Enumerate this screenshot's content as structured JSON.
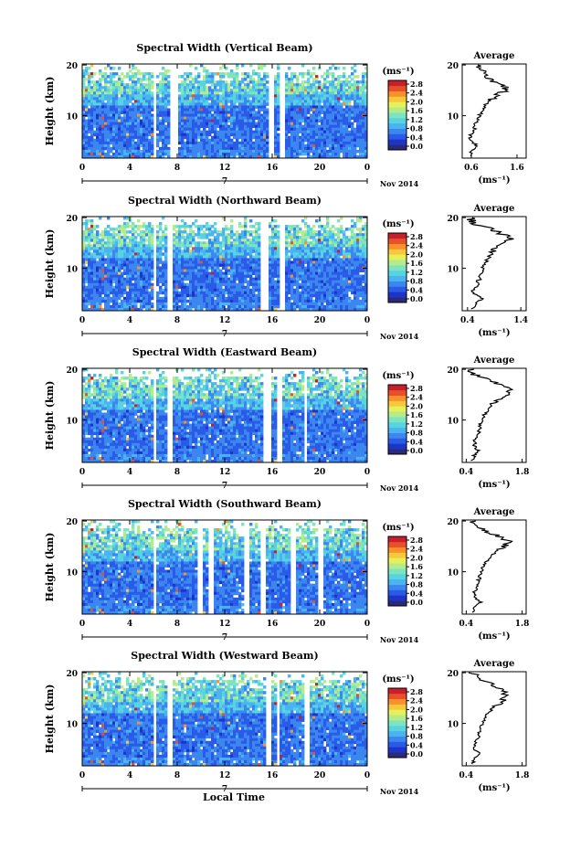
{
  "chart_data": [
    {
      "type": "heatmap",
      "title": "Spectral Width (Vertical Beam)",
      "ylabel": "Height (km)",
      "yticks": [
        "10",
        "20"
      ],
      "xticks": [
        "0",
        "4",
        "8",
        "12",
        "16",
        "20",
        "0"
      ],
      "date_marker": "7",
      "date_label": "Nov 2014",
      "colorbar_unit": "(ms⁻¹)",
      "colorbar_ticks": [
        "0.0",
        "0.4",
        "0.8",
        "1.2",
        "1.6",
        "2.0",
        "2.4",
        "2.8"
      ],
      "gaps_hours": [
        [
          5.8,
          6.2
        ],
        [
          7.2,
          8.0
        ],
        [
          15.5,
          16.0
        ],
        [
          16.4,
          16.9
        ]
      ],
      "average": {
        "title": "Average",
        "xticks": [
          "0.6",
          "1.6"
        ],
        "xlabel": "(ms⁻¹)",
        "xrange": [
          0.4,
          1.8
        ],
        "height_km": [
          2,
          3,
          4,
          5,
          6,
          7,
          8,
          9,
          10,
          11,
          12,
          13,
          14,
          15,
          16,
          17,
          18,
          19,
          20
        ],
        "width_ms": [
          0.55,
          0.62,
          0.75,
          0.6,
          0.58,
          0.65,
          0.68,
          0.72,
          0.78,
          0.82,
          0.9,
          1.0,
          1.15,
          1.35,
          1.3,
          1.05,
          0.95,
          0.8,
          0.7
        ]
      }
    },
    {
      "type": "heatmap",
      "title": "Spectral Width (Northward Beam)",
      "ylabel": "Height (km)",
      "yticks": [
        "10",
        "20"
      ],
      "xticks": [
        "0",
        "4",
        "8",
        "12",
        "16",
        "20",
        "0"
      ],
      "date_marker": "7",
      "date_label": "Nov 2014",
      "colorbar_unit": "(ms⁻¹)",
      "colorbar_ticks": [
        "0.0",
        "0.4",
        "0.8",
        "1.2",
        "1.6",
        "2.0",
        "2.4",
        "2.8"
      ],
      "gaps_hours": [
        [
          5.8,
          6.2
        ],
        [
          7.1,
          7.6
        ],
        [
          15.0,
          15.5
        ],
        [
          16.5,
          17.0
        ]
      ],
      "average": {
        "title": "Average",
        "xticks": [
          "0.4",
          "1.4"
        ],
        "xlabel": "(ms⁻¹)",
        "xrange": [
          0.3,
          1.5
        ],
        "height_km": [
          2,
          3,
          4,
          5,
          6,
          7,
          8,
          9,
          10,
          11,
          12,
          13,
          14,
          15,
          16,
          17,
          18,
          19,
          20
        ],
        "width_ms": [
          0.5,
          0.55,
          0.68,
          0.5,
          0.52,
          0.6,
          0.62,
          0.65,
          0.7,
          0.72,
          0.78,
          0.85,
          0.95,
          1.1,
          1.25,
          1.0,
          0.75,
          0.5,
          0.45
        ]
      }
    },
    {
      "type": "heatmap",
      "title": "Spectral Width (Eastward Beam)",
      "ylabel": "Height (km)",
      "yticks": [
        "10",
        "20"
      ],
      "xticks": [
        "0",
        "4",
        "8",
        "12",
        "16",
        "20",
        "0"
      ],
      "date_marker": "7",
      "date_label": "Nov 2014",
      "colorbar_unit": "(ms⁻¹)",
      "colorbar_ticks": [
        "0.0",
        "0.4",
        "0.8",
        "1.2",
        "1.6",
        "2.0",
        "2.4",
        "2.8"
      ],
      "gaps_hours": [
        [
          5.8,
          6.2
        ],
        [
          7.0,
          7.4
        ],
        [
          15.2,
          15.7
        ],
        [
          16.3,
          16.7
        ],
        [
          18.5,
          18.9
        ]
      ],
      "average": {
        "title": "Average",
        "xticks": [
          "0.4",
          "1.8"
        ],
        "xlabel": "(ms⁻¹)",
        "xrange": [
          0.3,
          1.9
        ],
        "height_km": [
          2,
          3,
          4,
          5,
          6,
          7,
          8,
          9,
          10,
          11,
          12,
          13,
          14,
          15,
          16,
          17,
          18,
          19,
          20
        ],
        "width_ms": [
          0.55,
          0.6,
          0.7,
          0.6,
          0.62,
          0.7,
          0.72,
          0.75,
          0.8,
          0.85,
          0.95,
          1.05,
          1.2,
          1.4,
          1.5,
          1.2,
          0.9,
          0.6,
          0.5
        ]
      }
    },
    {
      "type": "heatmap",
      "title": "Spectral Width (Southward Beam)",
      "ylabel": "Height (km)",
      "yticks": [
        "10",
        "20"
      ],
      "xticks": [
        "0",
        "4",
        "8",
        "12",
        "16",
        "20",
        "0"
      ],
      "date_marker": "7",
      "date_label": "Nov 2014",
      "colorbar_unit": "(ms⁻¹)",
      "colorbar_ticks": [
        "0.0",
        "0.4",
        "0.8",
        "1.2",
        "1.6",
        "2.0",
        "2.4",
        "2.8"
      ],
      "gaps_hours": [
        [
          5.8,
          6.2
        ],
        [
          9.6,
          10.0
        ],
        [
          10.6,
          11.0
        ],
        [
          13.5,
          13.9
        ],
        [
          15.0,
          15.4
        ],
        [
          17.4,
          17.8
        ],
        [
          19.7,
          20.1
        ]
      ],
      "average": {
        "title": "Average",
        "xticks": [
          "0.4",
          "1.8"
        ],
        "xlabel": "(ms⁻¹)",
        "xrange": [
          0.3,
          1.9
        ],
        "height_km": [
          2,
          3,
          4,
          5,
          6,
          7,
          8,
          9,
          10,
          11,
          12,
          13,
          14,
          15,
          16,
          17,
          18,
          19,
          20
        ],
        "width_ms": [
          0.55,
          0.62,
          0.75,
          0.6,
          0.6,
          0.68,
          0.7,
          0.74,
          0.78,
          0.82,
          0.9,
          1.0,
          1.15,
          1.35,
          1.45,
          1.2,
          0.9,
          0.65,
          0.55
        ]
      }
    },
    {
      "type": "heatmap",
      "title": "Spectral Width (Westward Beam)",
      "ylabel": "Height (km)",
      "yticks": [
        "10",
        "20"
      ],
      "xticks": [
        "0",
        "4",
        "8",
        "12",
        "16",
        "20",
        "0"
      ],
      "date_marker": "7",
      "date_label": "Nov 2014",
      "colorbar_unit": "(ms⁻¹)",
      "colorbar_ticks": [
        "0.0",
        "0.4",
        "0.8",
        "1.2",
        "1.6",
        "2.0",
        "2.4",
        "2.8"
      ],
      "gaps_hours": [
        [
          5.8,
          6.2
        ],
        [
          7.0,
          7.5
        ],
        [
          15.3,
          15.7
        ],
        [
          16.2,
          16.6
        ],
        [
          18.6,
          19.0
        ]
      ],
      "average": {
        "title": "Average",
        "xticks": [
          "0.4",
          "1.8"
        ],
        "xlabel": "(ms⁻¹)",
        "xrange": [
          0.3,
          1.9
        ],
        "height_km": [
          2,
          3,
          4,
          5,
          6,
          7,
          8,
          9,
          10,
          11,
          12,
          13,
          14,
          15,
          16,
          17,
          18,
          19,
          20
        ],
        "width_ms": [
          0.55,
          0.6,
          0.72,
          0.62,
          0.6,
          0.7,
          0.72,
          0.76,
          0.8,
          0.85,
          0.95,
          1.05,
          1.25,
          1.35,
          1.4,
          1.25,
          0.95,
          0.7,
          0.55
        ]
      }
    }
  ],
  "footer": {
    "xlabel": "Local Time"
  },
  "colormap": [
    "#2a2a78",
    "#1d34c8",
    "#2a5ae8",
    "#3c86f0",
    "#4ab4f0",
    "#58d4e0",
    "#7ee4c0",
    "#b4ec8c",
    "#e6f05a",
    "#f8c83c",
    "#f8902c",
    "#e8502a",
    "#c8202a"
  ]
}
